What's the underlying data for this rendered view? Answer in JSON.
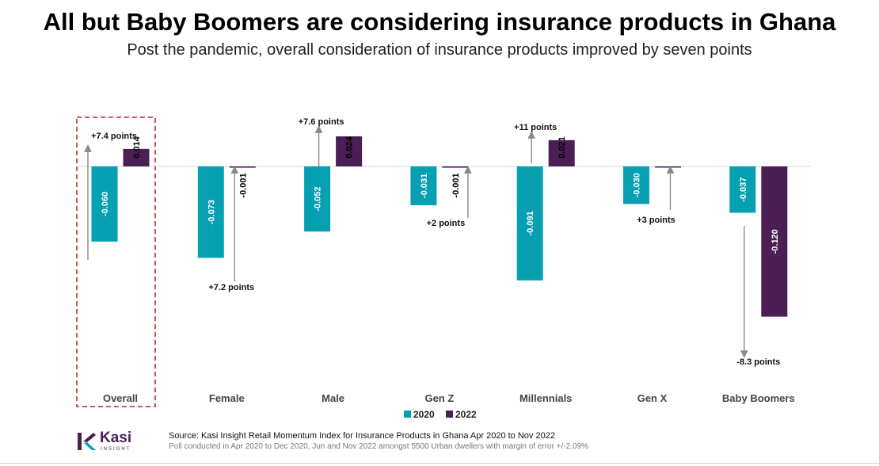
{
  "chart_data": {
    "type": "bar",
    "title": "All but Baby Boomers are considering insurance products in Ghana",
    "subtitle": "Post the pandemic, overall consideration of insurance products improved by seven points",
    "categories": [
      "Overall",
      "Female",
      "Male",
      "Gen Z",
      "Millennials",
      "Gen X",
      "Baby Boomers"
    ],
    "series": [
      {
        "name": "2020",
        "color": "#06a0b2",
        "values": [
          -0.06,
          -0.073,
          -0.052,
          -0.031,
          -0.091,
          -0.03,
          -0.037
        ],
        "labels": [
          "-0.060",
          "-0.073",
          "-0.052",
          "-0.031",
          "-0.091",
          "-0.030",
          "-0.037"
        ]
      },
      {
        "name": "2022",
        "color": "#4b1f55",
        "values": [
          0.014,
          -0.001,
          0.024,
          -0.001,
          0.021,
          0.0,
          -0.12
        ],
        "labels": [
          "0.014",
          "-0.001",
          "0.024",
          "-0.001",
          "0.021",
          "",
          "-0.120"
        ]
      }
    ],
    "annotations": [
      "+7.4 points",
      "+7.2 points",
      "+7.6 points",
      "+2 points",
      "+11 points",
      "+3 points",
      "-8.3 points"
    ],
    "highlight": "Overall",
    "ylim": [
      -0.14,
      0.04
    ],
    "legend": "bottom-center"
  },
  "footer": {
    "source": "Source: Kasi Insight Retail Momentum Index for Insurance Products in Ghana Apr 2020 to Nov 2022",
    "note": "Poll conducted in Apr 2020 to Dec 2020, Jun and Nov 2022 amongst 5500 Urban dwellers with margin of error +/-2.09%"
  },
  "logo": {
    "word": "Kasi",
    "sub": "INSIGHT"
  }
}
